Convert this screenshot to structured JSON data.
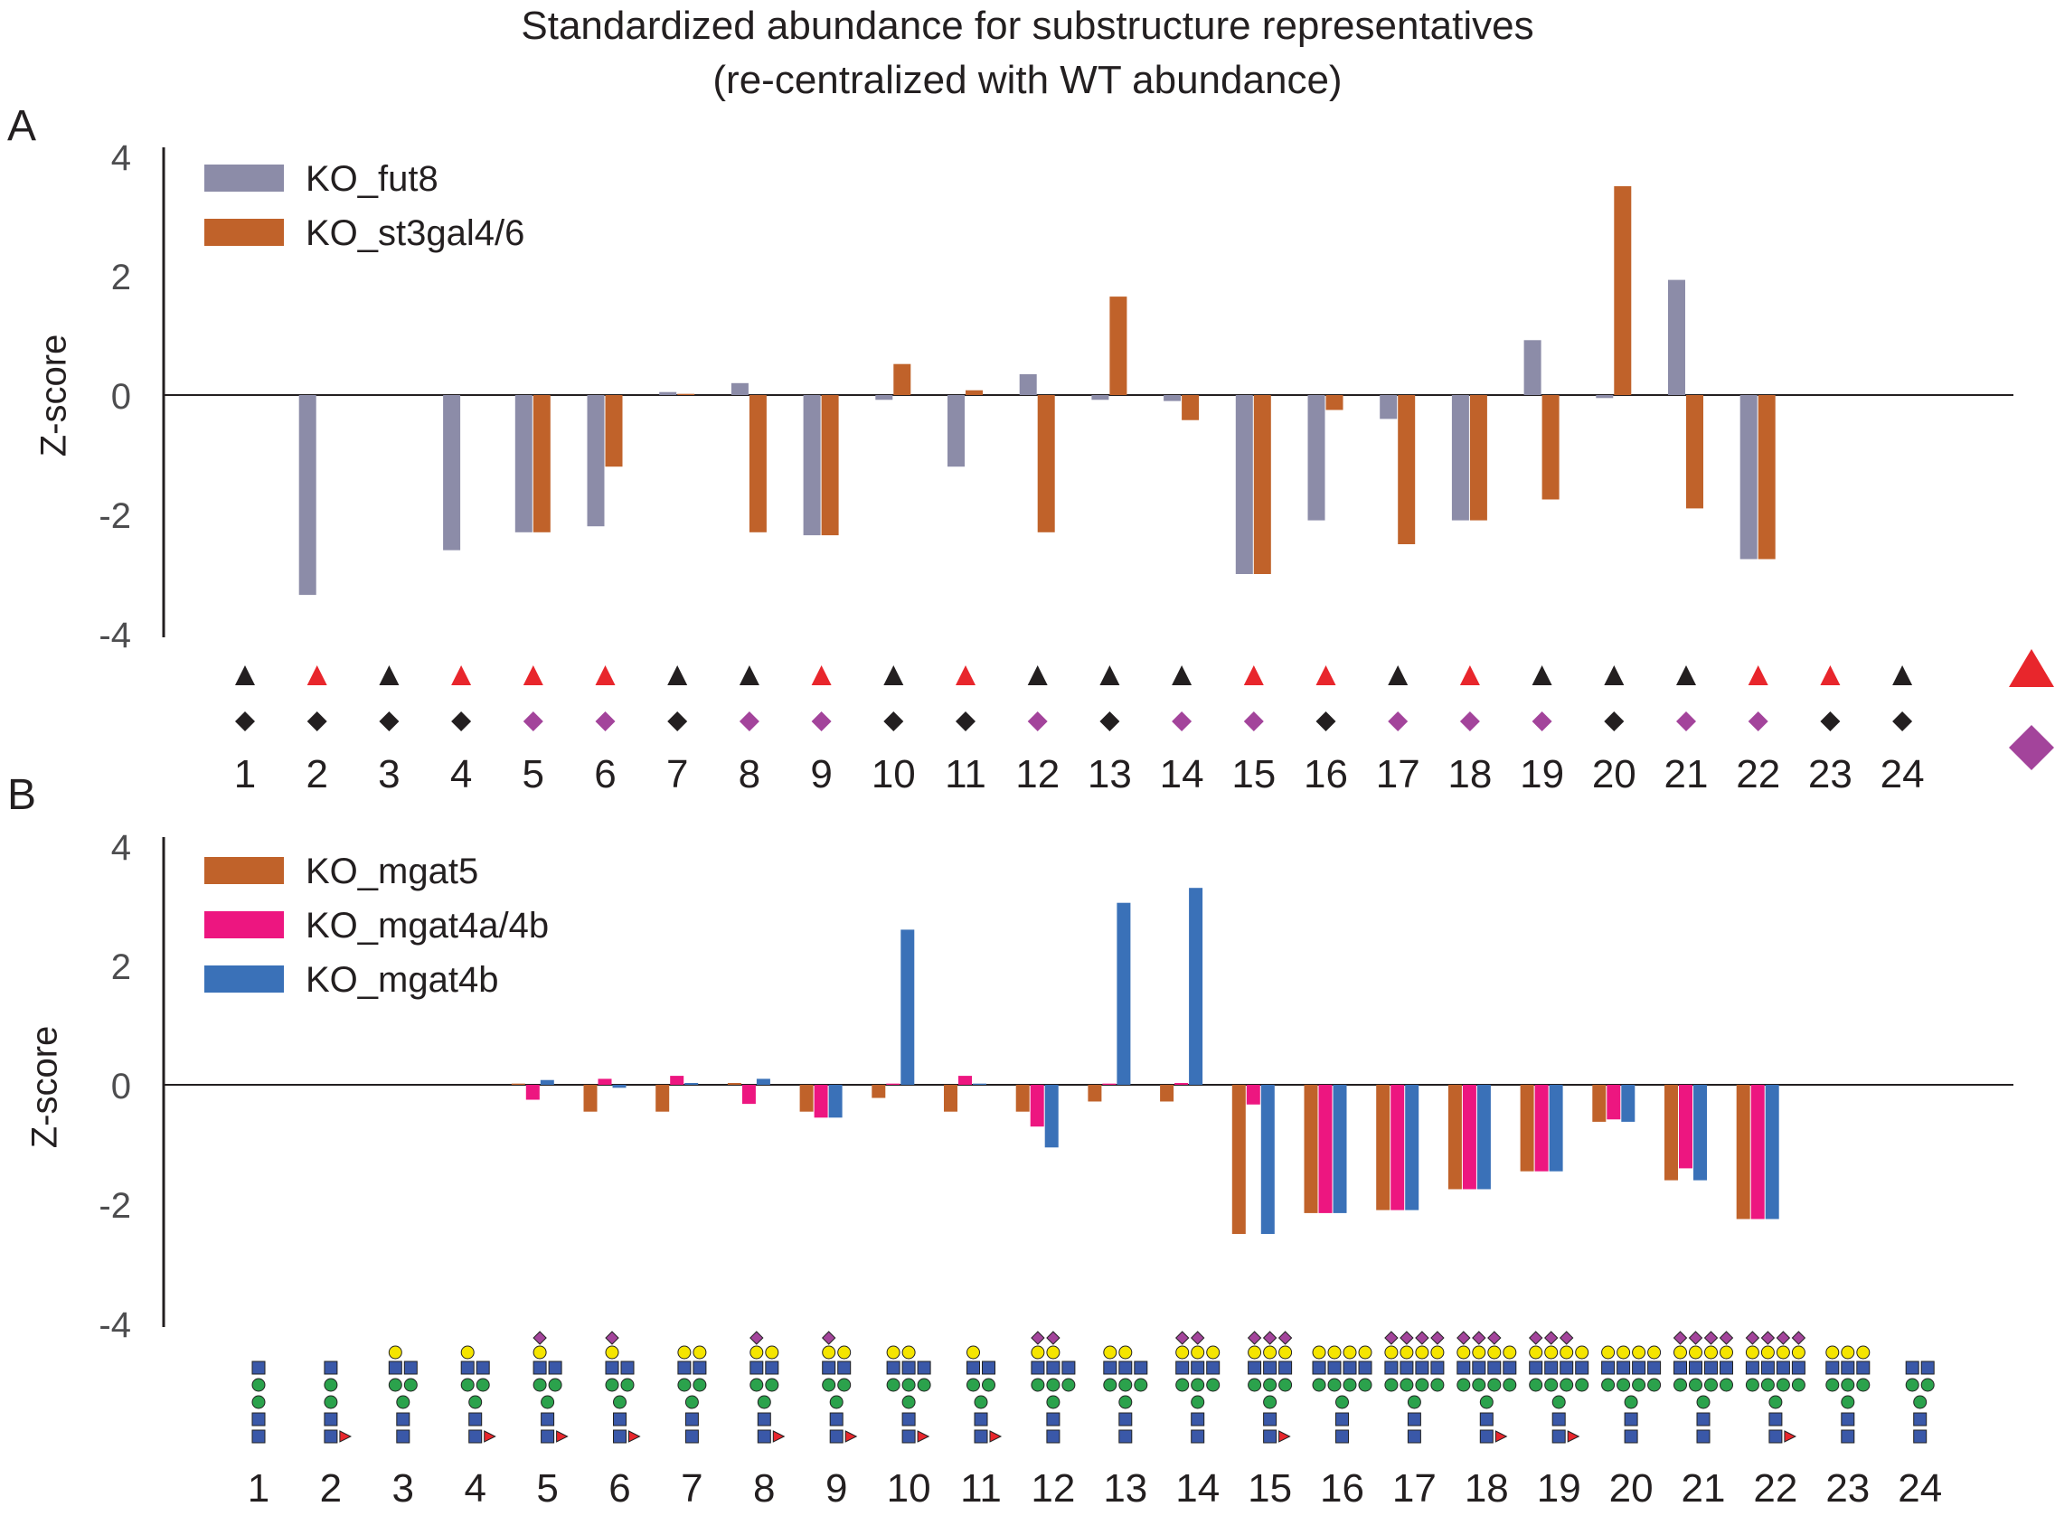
{
  "title_line1": "Standardized abundance for substructure representatives",
  "title_line2": "(re-centralized with WT abundance)",
  "panel_a_label": "A",
  "panel_b_label": "B",
  "colors": {
    "fut8": "#8c8ca8",
    "orange": "#c0622a",
    "pink": "#ed1680",
    "blue": "#3a71b8",
    "red": "#e8262c",
    "black": "#231f20",
    "purple": "#a3449b"
  },
  "chart_data": [
    {
      "type": "bar",
      "panel": "A",
      "ylabel": "Z-score",
      "ylim": [
        -4,
        4
      ],
      "yticks": [
        "4",
        "2",
        "0",
        "-2",
        "-4"
      ],
      "categories": [
        "1",
        "2",
        "3",
        "4",
        "5",
        "6",
        "7",
        "8",
        "9",
        "10",
        "11",
        "12",
        "13",
        "14",
        "15",
        "16",
        "17",
        "18",
        "19",
        "20",
        "21",
        "22",
        "23",
        "24"
      ],
      "series": [
        {
          "name": "KO_fut8",
          "color": "#8c8ca8",
          "values": [
            0,
            -3.35,
            0,
            -2.6,
            -2.3,
            -2.2,
            0.05,
            0.2,
            -2.35,
            -0.08,
            -1.2,
            0.35,
            -0.08,
            -0.1,
            -3.0,
            -2.1,
            -0.4,
            -2.1,
            0.92,
            -0.05,
            1.93,
            -2.75,
            0,
            0
          ]
        },
        {
          "name": "KO_st3gal4/6",
          "color": "#c0622a",
          "values": [
            0,
            0,
            0,
            0,
            -2.3,
            -1.2,
            0.02,
            -2.3,
            -2.35,
            0.52,
            0.08,
            -2.3,
            1.65,
            -0.42,
            -3.0,
            -0.25,
            -2.5,
            -2.1,
            -1.75,
            3.5,
            -1.9,
            -2.75,
            0,
            0
          ]
        }
      ],
      "triangle_row": [
        "black",
        "red",
        "black",
        "red",
        "red",
        "red",
        "black",
        "black",
        "red",
        "black",
        "red",
        "black",
        "black",
        "black",
        "red",
        "red",
        "black",
        "red",
        "black",
        "black",
        "black",
        "red",
        "red",
        "black"
      ],
      "diamond_row": [
        "black",
        "black",
        "black",
        "black",
        "purple",
        "purple",
        "black",
        "purple",
        "purple",
        "black",
        "black",
        "purple",
        "black",
        "purple",
        "purple",
        "black",
        "purple",
        "purple",
        "purple",
        "black",
        "purple",
        "purple",
        "black",
        "black"
      ]
    },
    {
      "type": "bar",
      "panel": "B",
      "ylabel": "Z-score",
      "ylim": [
        -4,
        4
      ],
      "yticks": [
        "4",
        "2",
        "0",
        "-2",
        "-4"
      ],
      "categories": [
        "1",
        "2",
        "3",
        "4",
        "5",
        "6",
        "7",
        "8",
        "9",
        "10",
        "11",
        "12",
        "13",
        "14",
        "15",
        "16",
        "17",
        "18",
        "19",
        "20",
        "21",
        "22",
        "23",
        "24"
      ],
      "series": [
        {
          "name": "KO_mgat5",
          "color": "#c0622a",
          "values": [
            0,
            0,
            0,
            0,
            0.02,
            -0.45,
            -0.45,
            0.03,
            -0.45,
            -0.22,
            -0.45,
            -0.45,
            -0.28,
            -0.28,
            -2.5,
            -2.15,
            -2.1,
            -1.75,
            -1.45,
            -0.62,
            -1.6,
            -2.25,
            0,
            0
          ]
        },
        {
          "name": "KO_mgat4a/4b",
          "color": "#ed1680",
          "values": [
            0,
            0,
            0,
            0,
            -0.25,
            0.1,
            0.15,
            -0.32,
            -0.55,
            0.02,
            0.15,
            -0.7,
            0.02,
            0.03,
            -0.33,
            -2.15,
            -2.1,
            -1.75,
            -1.45,
            -0.58,
            -1.4,
            -2.25,
            0,
            0
          ]
        },
        {
          "name": "KO_mgat4b",
          "color": "#3a71b8",
          "values": [
            0,
            0,
            0,
            0,
            0.08,
            -0.05,
            0.03,
            0.1,
            -0.55,
            2.6,
            0.02,
            -1.05,
            3.05,
            3.3,
            -2.5,
            -2.15,
            -2.1,
            -1.75,
            -1.45,
            -0.62,
            -1.6,
            -2.25,
            0,
            0
          ]
        }
      ]
    }
  ]
}
